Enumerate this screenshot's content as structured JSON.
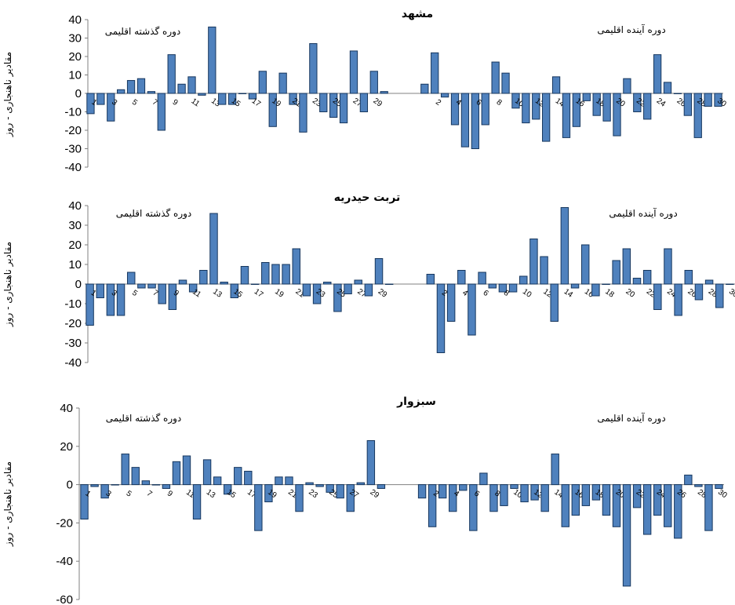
{
  "chart_data": [
    {
      "type": "bar",
      "title": "مشهد",
      "ylabel": "مقادیر ناهنجاری - روز",
      "ylim": [
        -40,
        40
      ],
      "yticks": [
        40,
        30,
        20,
        10,
        0,
        -10,
        -20,
        -30,
        -40
      ],
      "annotations": [
        "دوره گذشته اقلیمی",
        "دوره آینده اقلیمی"
      ],
      "series": [
        {
          "name": "دوره گذشته اقلیمی",
          "tick_labels": [
            "1",
            "",
            "3",
            "",
            "5",
            "",
            "7",
            "",
            "9",
            "",
            "11",
            "",
            "13",
            "",
            "15",
            "",
            "17",
            "",
            "19",
            "",
            "21",
            "",
            "23",
            "",
            "25",
            "",
            "27",
            "",
            "29",
            ""
          ],
          "values": [
            -11,
            -6,
            -15,
            2,
            7,
            8,
            1,
            -20,
            21,
            5,
            9,
            -1,
            36,
            -6,
            -6,
            0,
            -3,
            12,
            -18,
            11,
            -6,
            -21,
            27,
            -10,
            -13,
            -16,
            23,
            -10,
            12,
            1
          ]
        },
        {
          "name": "دوره آینده اقلیمی",
          "tick_labels": [
            "",
            "2",
            "",
            "4",
            "",
            "6",
            "",
            "8",
            "",
            "10",
            "",
            "12",
            "",
            "14",
            "",
            "16",
            "",
            "18",
            "",
            "20",
            "",
            "22",
            "",
            "24",
            "",
            "26",
            "",
            "28",
            "",
            "30"
          ],
          "values": [
            5,
            22,
            -2,
            -17,
            -29,
            -30,
            -17,
            17,
            11,
            -8,
            -16,
            -14,
            -26,
            9,
            -24,
            -18,
            -4,
            -12,
            -15,
            -23,
            8,
            -10,
            -14,
            21,
            6,
            0,
            -12,
            -24,
            -7,
            -7
          ]
        }
      ]
    },
    {
      "type": "bar",
      "title": "تربت حیدریه",
      "ylabel": "مقادیر ناهنجاری - روز",
      "ylim": [
        -40,
        40
      ],
      "yticks": [
        40,
        30,
        20,
        10,
        0,
        -10,
        -20,
        -30,
        -40
      ],
      "annotations": [
        "دوره گذشته اقلیمی",
        "دوره آینده اقلیمی"
      ],
      "series": [
        {
          "name": "دوره گذشته اقلیمی",
          "tick_labels": [
            "1",
            "",
            "3",
            "",
            "5",
            "",
            "7",
            "",
            "9",
            "",
            "11",
            "",
            "13",
            "",
            "15",
            "",
            "17",
            "",
            "19",
            "",
            "21",
            "",
            "23",
            "",
            "25",
            "",
            "27",
            "",
            "29",
            ""
          ],
          "values": [
            -21,
            -7,
            -16,
            -16,
            6,
            -2,
            -2,
            -10,
            -13,
            2,
            -4,
            7,
            36,
            1,
            -7,
            9,
            0,
            11,
            10,
            10,
            18,
            -6,
            -10,
            1,
            -14,
            -5,
            2,
            -6,
            13,
            0
          ]
        },
        {
          "name": "دوره آینده اقلیمی",
          "tick_labels": [
            "",
            "2",
            "",
            "4",
            "",
            "6",
            "",
            "8",
            "",
            "10",
            "",
            "12",
            "",
            "14",
            "",
            "16",
            "",
            "18",
            "",
            "20",
            "",
            "22",
            "",
            "24",
            "",
            "26",
            "",
            "28",
            "",
            "30"
          ],
          "values": [
            5,
            -35,
            -19,
            7,
            -26,
            6,
            -2,
            -4,
            -4,
            4,
            23,
            14,
            -19,
            39,
            -2,
            20,
            -6,
            0,
            12,
            18,
            3,
            7,
            -13,
            18,
            -16,
            7,
            -8,
            2,
            -12,
            0
          ]
        }
      ]
    },
    {
      "type": "bar",
      "title": "سبزوار",
      "ylabel": "مقادیر ناهنجاری - روز",
      "ylim": [
        -60,
        40
      ],
      "yticks": [
        40,
        20,
        0,
        -20,
        -40,
        -60
      ],
      "annotations": [
        "دوره گذشته اقلیمی",
        "دوره آینده اقلیمی"
      ],
      "series": [
        {
          "name": "دوره گذشته اقلیمی",
          "tick_labels": [
            "1",
            "",
            "3",
            "",
            "5",
            "",
            "7",
            "",
            "9",
            "",
            "11",
            "",
            "13",
            "",
            "15",
            "",
            "17",
            "",
            "19",
            "",
            "21",
            "",
            "23",
            "",
            "25",
            "",
            "27",
            "",
            "29",
            ""
          ],
          "values": [
            -18,
            -1,
            -7,
            0,
            16,
            9,
            2,
            0,
            -2,
            12,
            15,
            -18,
            13,
            4,
            -5,
            9,
            7,
            -24,
            -9,
            4,
            4,
            -14,
            1,
            -1,
            -4,
            -7,
            -14,
            1,
            23,
            -2
          ]
        },
        {
          "name": "دوره آینده اقلیمی",
          "tick_labels": [
            "",
            "2",
            "",
            "4",
            "",
            "6",
            "",
            "8",
            "",
            "10",
            "",
            "12",
            "",
            "14",
            "",
            "16",
            "",
            "18",
            "",
            "20",
            "",
            "22",
            "",
            "24",
            "",
            "26",
            "",
            "28",
            "",
            "30"
          ],
          "values": [
            -7,
            -22,
            -7,
            -14,
            -3,
            -24,
            6,
            -14,
            -11,
            -2,
            -9,
            -8,
            -14,
            16,
            -22,
            -16,
            -11,
            -8,
            -16,
            -22,
            -53,
            -12,
            -26,
            -16,
            -22,
            -28,
            5,
            -1,
            -24,
            -2
          ]
        }
      ]
    }
  ]
}
